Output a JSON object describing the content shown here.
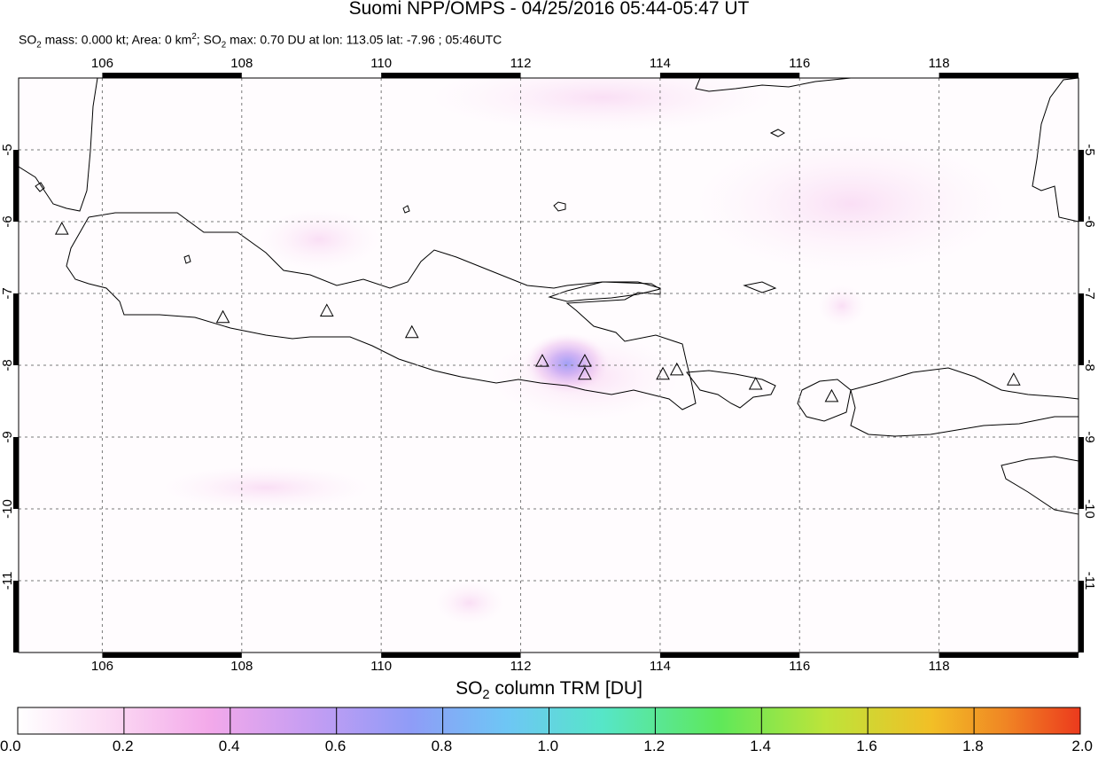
{
  "header": {
    "title": "Suomi NPP/OMPS - 04/25/2016 05:44-05:47 UT",
    "mass_prefix": "SO",
    "mass_text": " mass: 0.000 kt; Area: 0 km",
    "area_sup": "2",
    "max_prefix": "; SO",
    "max_text": " max: 0.70 DU at lon: 113.05 lat: -7.96 ; 05:46UTC",
    "sub_2": "2"
  },
  "map": {
    "lon_range": [
      104.8,
      120.0
    ],
    "lat_range": [
      -12.0,
      -4.0
    ],
    "lon_ticks": [
      "106",
      "108",
      "110",
      "112",
      "114",
      "116",
      "118"
    ],
    "lat_ticks": [
      "-5",
      "-6",
      "-7",
      "-8",
      "-9",
      "-10",
      "-11"
    ],
    "grid": true,
    "volcano_icon": "triangle-outline",
    "volcanoes": [
      {
        "lon": 105.42,
        "lat": -6.1
      },
      {
        "lon": 107.73,
        "lat": -7.33
      },
      {
        "lon": 109.22,
        "lat": -7.24
      },
      {
        "lon": 110.44,
        "lat": -7.54
      },
      {
        "lon": 112.31,
        "lat": -7.94
      },
      {
        "lon": 112.92,
        "lat": -7.94
      },
      {
        "lon": 112.92,
        "lat": -8.12
      },
      {
        "lon": 114.04,
        "lat": -8.12
      },
      {
        "lon": 114.24,
        "lat": -8.06
      },
      {
        "lon": 115.37,
        "lat": -8.26
      },
      {
        "lon": 116.46,
        "lat": -8.43
      },
      {
        "lon": 119.07,
        "lat": -8.2
      }
    ],
    "so2_max": {
      "value_du": 0.7,
      "lon": 113.05,
      "lat": -7.96
    }
  },
  "colorbar": {
    "title_prefix": "SO",
    "title_sub": "2",
    "title_suffix": " column TRM [DU]",
    "labels": [
      "0.0",
      "0.2",
      "0.4",
      "0.6",
      "0.8",
      "1.0",
      "1.2",
      "1.4",
      "1.6",
      "1.8",
      "2.0"
    ],
    "colors": [
      "#ffffff",
      "#fbd8f3",
      "#f3a9ea",
      "#c39df3",
      "#8f9cf7",
      "#6ec6f5",
      "#56e6c8",
      "#5ee85a",
      "#bde43a",
      "#f2bf26",
      "#f08524",
      "#ec3a1d"
    ]
  }
}
